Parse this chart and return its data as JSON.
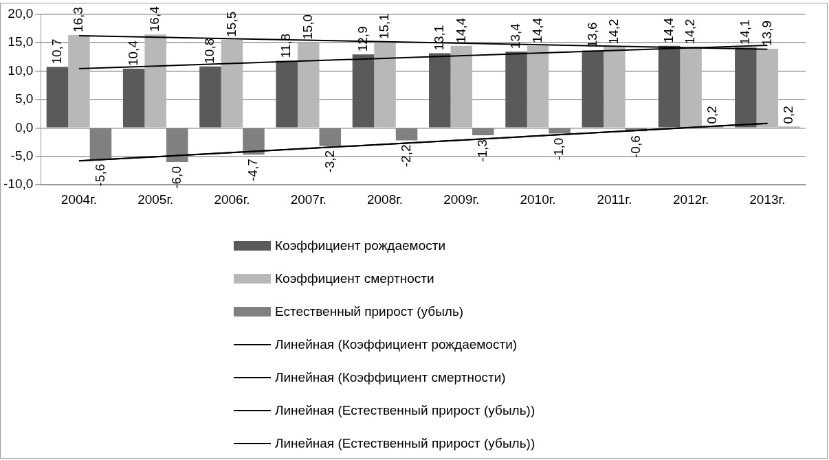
{
  "chart_data": {
    "type": "bar",
    "categories": [
      "2004г.",
      "2005г.",
      "2006г.",
      "2007г.",
      "2008г.",
      "2009г.",
      "2010г.",
      "2011г.",
      "2012г.",
      "2013г."
    ],
    "series": [
      {
        "name": "Коэффициент рождаемости",
        "color": "#5a5a5a",
        "values": [
          10.7,
          10.4,
          10.8,
          11.8,
          12.9,
          13.1,
          13.4,
          13.6,
          14.4,
          14.1
        ],
        "value_labels": [
          "10,7",
          "10,4",
          "10,8",
          "11,8",
          "12,9",
          "13,1",
          "13,4",
          "13,6",
          "14,4",
          "14,1"
        ]
      },
      {
        "name": "Коэффициент смертности",
        "color": "#b8b8b8",
        "values": [
          16.3,
          16.4,
          15.5,
          15.0,
          15.1,
          14.4,
          14.4,
          14.2,
          14.2,
          13.9
        ],
        "value_labels": [
          "16,3",
          "16,4",
          "15,5",
          "15,0",
          "15,1",
          "14,4",
          "14,4",
          "14,2",
          "14,2",
          "13,9"
        ]
      },
      {
        "name": "Естественный прирост (убыль)",
        "color": "#808080",
        "values": [
          -5.6,
          -6.0,
          -4.7,
          -3.2,
          -2.2,
          -1.3,
          -1.0,
          -0.6,
          0.2,
          0.2
        ],
        "value_labels": [
          "-5,6",
          "-6,0",
          "-4,7",
          "-3,2",
          "-2,2",
          "-1,3",
          "-1,0",
          "-0,6",
          "0,2",
          "0,2"
        ]
      },
      {
        "name": "Линейная (Коэффициент рождаемости)",
        "type": "line",
        "color": "#000000",
        "x": [
          "2004г.",
          "2013г."
        ],
        "values": [
          10.4,
          14.5
        ]
      },
      {
        "name": "Линейная (Коэффициент смертности)",
        "type": "line",
        "color": "#000000",
        "x": [
          "2004г.",
          "2013г."
        ],
        "values": [
          16.2,
          13.8
        ]
      },
      {
        "name": "Линейная (Естественный прирост (убыль))",
        "type": "line",
        "color": "#000000",
        "x": [
          "2004г.",
          "2013г."
        ],
        "values": [
          -5.8,
          0.8
        ]
      },
      {
        "name": "Линейная (Естественный прирост (убыль))",
        "type": "line",
        "color": "#000000",
        "x": [
          "2004г.",
          "2013г."
        ],
        "values": [
          -5.8,
          0.8
        ]
      }
    ],
    "ylim": [
      -10,
      20
    ],
    "yticks": [
      {
        "value": -10,
        "label": "-10,0"
      },
      {
        "value": -5,
        "label": "-5,0"
      },
      {
        "value": 0,
        "label": "0,0"
      },
      {
        "value": 5,
        "label": "5,0"
      },
      {
        "value": 10,
        "label": "10,0"
      },
      {
        "value": 15,
        "label": "15,0"
      },
      {
        "value": 20,
        "label": "20,0"
      }
    ],
    "grid": "y",
    "legend": "bottom",
    "marker": "none",
    "line_style": "solid"
  }
}
